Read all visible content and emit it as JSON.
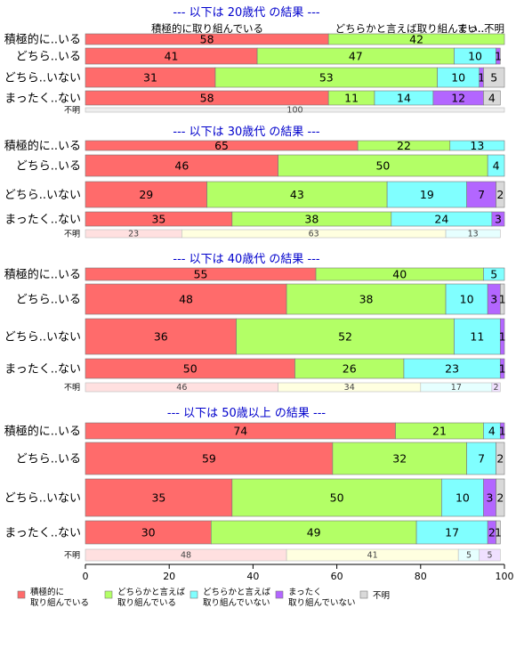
{
  "chart_data": {
    "type": "bar",
    "orientation": "horizontal",
    "stacked": "percent",
    "xlim": [
      0,
      100
    ],
    "xticks": [
      "0",
      "20",
      "40",
      "60",
      "80",
      "100"
    ],
    "colors": [
      "#ff6b6b",
      "#b3ff66",
      "#80ffff",
      "#b366ff",
      "#d9d9d9"
    ],
    "legend": {
      "position": "bottom",
      "labels": [
        "積極的に\n取り組んでいる",
        "どちらかと言えば\n取り組んでいる",
        "どちらかと言えば\n取り組んでいない",
        "まったく\n取り組んでいない",
        "不明"
      ]
    },
    "header_labels": {
      "left": "積極的に取り組んでいる",
      "right": "どちらかと言えば取り組んでい...",
      "overlap": "まっ..不明"
    },
    "panels": [
      {
        "title": "--- 以下は 20歳代 の結果 ---",
        "rows": [
          {
            "label": "積極的に..いる",
            "values": [
              58,
              42,
              0,
              0,
              0
            ],
            "labels": [
              "58",
              "42",
              "",
              "",
              ""
            ]
          },
          {
            "label": "どちら..いる",
            "values": [
              41,
              47,
              10,
              1,
              0
            ],
            "labels": [
              "41",
              "47",
              "10",
              "1",
              ""
            ]
          },
          {
            "label": "どちら..いない",
            "values": [
              31,
              53,
              10,
              1,
              5
            ],
            "labels": [
              "31",
              "53",
              "10",
              "1",
              "5"
            ]
          },
          {
            "label": "まったく..ない",
            "values": [
              58,
              11,
              14,
              12,
              4
            ],
            "labels": [
              "58",
              "11",
              "14",
              "12",
              "4"
            ]
          }
        ],
        "unknown": {
          "label": "不明",
          "values": [
            0,
            0,
            0,
            0,
            100
          ],
          "labels": [
            "",
            "",
            "",
            "",
            "100"
          ]
        }
      },
      {
        "title": "--- 以下は 30歳代 の結果 ---",
        "rows": [
          {
            "label": "積極的に..いる",
            "values": [
              65,
              22,
              13,
              0,
              0
            ],
            "labels": [
              "65",
              "22",
              "13",
              "",
              ""
            ]
          },
          {
            "label": "どちら..いる",
            "values": [
              46,
              50,
              4,
              0,
              0
            ],
            "labels": [
              "46",
              "50",
              "4",
              "",
              ""
            ]
          },
          {
            "label": "どちら..いない",
            "values": [
              29,
              43,
              19,
              7,
              2
            ],
            "labels": [
              "29",
              "43",
              "19",
              "7",
              "2"
            ]
          },
          {
            "label": "まったく..ない",
            "values": [
              35,
              38,
              24,
              3,
              0
            ],
            "labels": [
              "35",
              "38",
              "24",
              "3",
              ""
            ]
          }
        ],
        "unknown": {
          "label": "不明",
          "values": [
            23,
            63,
            13,
            0,
            0
          ],
          "labels": [
            "23",
            "63",
            "13",
            "",
            ""
          ]
        }
      },
      {
        "title": "--- 以下は 40歳代 の結果 ---",
        "rows": [
          {
            "label": "積極的に..いる",
            "values": [
              55,
              40,
              5,
              0,
              0
            ],
            "labels": [
              "55",
              "40",
              "5",
              "",
              ""
            ]
          },
          {
            "label": "どちら..いる",
            "values": [
              48,
              38,
              10,
              3,
              1
            ],
            "labels": [
              "48",
              "38",
              "10",
              "3",
              "1"
            ]
          },
          {
            "label": "どちら..いない",
            "values": [
              36,
              52,
              11,
              1,
              0
            ],
            "labels": [
              "36",
              "52",
              "11",
              "1",
              ""
            ]
          },
          {
            "label": "まったく..ない",
            "values": [
              50,
              26,
              23,
              1,
              0
            ],
            "labels": [
              "50",
              "26",
              "23",
              "1",
              ""
            ]
          }
        ],
        "unknown": {
          "label": "不明",
          "values": [
            46,
            34,
            17,
            2,
            0
          ],
          "labels": [
            "46",
            "34",
            "17",
            "2",
            ""
          ]
        }
      },
      {
        "title": "--- 以下は 50歳以上 の結果 ---",
        "rows": [
          {
            "label": "積極的に..いる",
            "values": [
              74,
              21,
              4,
              1,
              0
            ],
            "labels": [
              "74",
              "21",
              "4",
              "1",
              ""
            ]
          },
          {
            "label": "どちら..いる",
            "values": [
              59,
              32,
              7,
              0,
              2
            ],
            "labels": [
              "59",
              "32",
              "7",
              "",
              "2"
            ]
          },
          {
            "label": "どちら..いない",
            "values": [
              35,
              50,
              10,
              3,
              2
            ],
            "labels": [
              "35",
              "50",
              "10",
              "3",
              "2"
            ]
          },
          {
            "label": "まったく..ない",
            "values": [
              30,
              49,
              17,
              2,
              1
            ],
            "labels": [
              "30",
              "49",
              "17",
              "2",
              "1"
            ]
          }
        ],
        "unknown": {
          "label": "不明",
          "values": [
            48,
            41,
            5,
            5,
            0
          ],
          "labels": [
            "48",
            "41",
            "5",
            "5",
            ""
          ]
        }
      }
    ]
  }
}
